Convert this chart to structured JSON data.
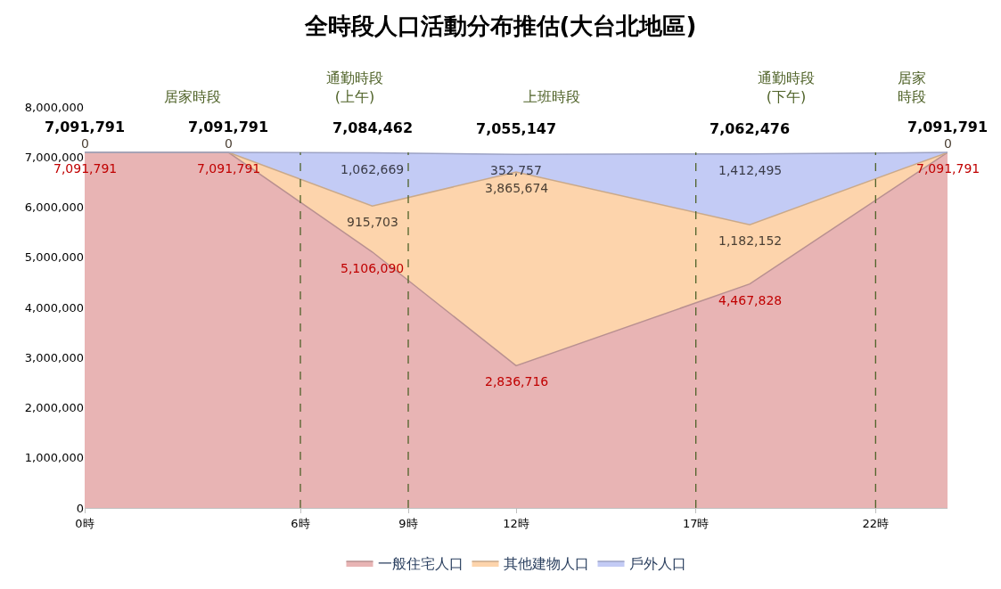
{
  "chart_data": {
    "type": "area",
    "stacked": true,
    "title": "全時段人口活動分布推估(大台北地區)",
    "x": [
      0,
      4,
      8,
      12,
      18.5,
      24
    ],
    "xlim": [
      0,
      24
    ],
    "xticks": [
      {
        "value": 0,
        "label": "0時"
      },
      {
        "value": 6,
        "label": "6時"
      },
      {
        "value": 9,
        "label": "9時"
      },
      {
        "value": 12,
        "label": "12時"
      },
      {
        "value": 17,
        "label": "17時"
      },
      {
        "value": 22,
        "label": "22時"
      }
    ],
    "ylim": [
      0,
      8000000
    ],
    "yticks": [
      {
        "value": 0,
        "label": "0"
      },
      {
        "value": 1000000,
        "label": "1,000,000"
      },
      {
        "value": 2000000,
        "label": "2,000,000"
      },
      {
        "value": 3000000,
        "label": "3,000,000"
      },
      {
        "value": 4000000,
        "label": "4,000,000"
      },
      {
        "value": 5000000,
        "label": "5,000,000"
      },
      {
        "value": 6000000,
        "label": "6,000,000"
      },
      {
        "value": 7000000,
        "label": "7,000,000"
      },
      {
        "value": 8000000,
        "label": "8,000,000"
      }
    ],
    "series": [
      {
        "name": "一般住宅人口",
        "color": "#e8b4b4",
        "values": [
          7091791,
          7091791,
          5106090,
          2836716,
          4467828,
          7091791
        ],
        "value_labels": [
          "7,091,791",
          "7,091,791",
          "5,106,090",
          "2,836,716",
          "4,467,828",
          "7,091,791"
        ]
      },
      {
        "name": "其他建物人口",
        "color": "#fdd4ac",
        "values": [
          0,
          0,
          915703,
          3865674,
          1182152,
          0
        ],
        "value_labels": [
          "0",
          "0",
          "915,703",
          "3,865,674",
          "1,182,152",
          "0"
        ]
      },
      {
        "name": "戶外人口",
        "color": "#c3cbf5",
        "values": [
          0,
          0,
          1062669,
          352757,
          1412495,
          0
        ],
        "value_labels": [
          null,
          null,
          "1,062,669",
          "352,757",
          "1,412,495",
          null
        ]
      }
    ],
    "totals": [
      "7,091,791",
      "7,091,791",
      "7,084,462",
      "7,055,147",
      "7,062,476",
      "7,091,791"
    ],
    "ref_lines": [
      {
        "axis": "x",
        "value": 6,
        "color": "#4f6228",
        "line_style": "dashed"
      },
      {
        "axis": "x",
        "value": 9,
        "color": "#4f6228",
        "line_style": "dashed"
      },
      {
        "axis": "x",
        "value": 17,
        "color": "#4f6228",
        "line_style": "dashed"
      },
      {
        "axis": "x",
        "value": 22,
        "color": "#4f6228",
        "line_style": "dashed"
      }
    ],
    "annotations": [
      "居家時段",
      "通勤時段\n(上午)",
      "上班時段",
      "通勤時段\n(下午)",
      "居家時段"
    ],
    "legend": "bottom",
    "marker": "none",
    "line_style": "solid"
  }
}
